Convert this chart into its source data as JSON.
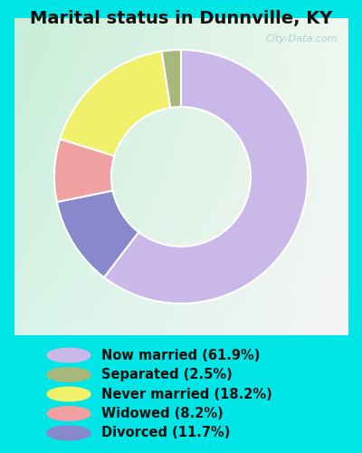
{
  "title": "Marital status in Dunnville, KY",
  "slices": [
    61.9,
    2.5,
    18.2,
    8.2,
    11.7
  ],
  "labels": [
    "Now married (61.9%)",
    "Separated (2.5%)",
    "Never married (18.2%)",
    "Widowed (8.2%)",
    "Divorced (11.7%)"
  ],
  "colors": [
    "#c9b8e8",
    "#a8b87a",
    "#f0f06a",
    "#f0a0a0",
    "#8888cc"
  ],
  "bg_outer": "#00e5e5",
  "bg_inner_tl": "#c8eed8",
  "bg_inner_tr": "#eef8ee",
  "bg_inner_br": "#f8f8f8",
  "watermark": "City-Data.com",
  "title_fontsize": 14,
  "legend_fontsize": 10.5,
  "donut_width": 0.45,
  "start_angle": 90
}
